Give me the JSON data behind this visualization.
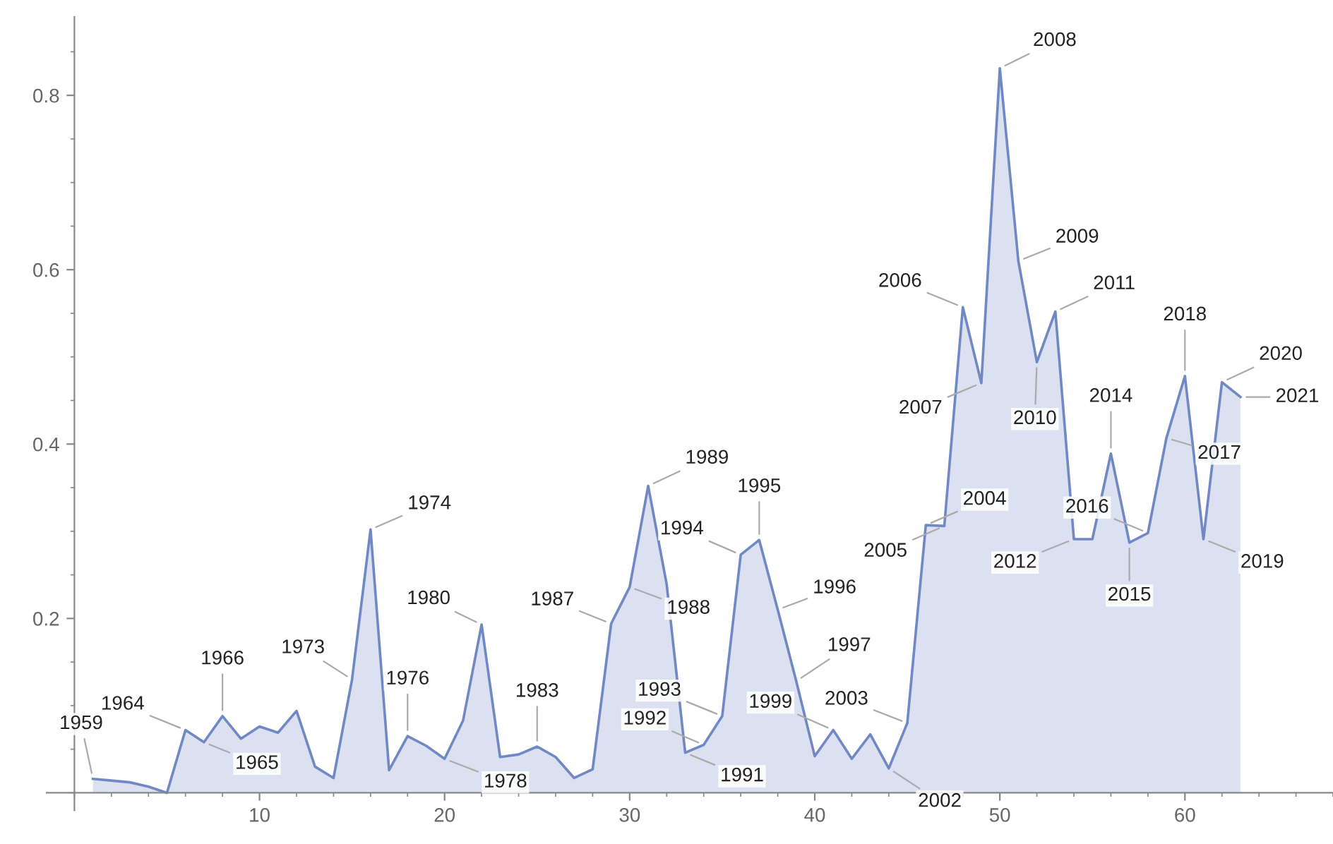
{
  "chart_data": {
    "type": "area",
    "x": [
      1,
      2,
      3,
      4,
      5,
      6,
      7,
      8,
      9,
      10,
      11,
      12,
      13,
      14,
      15,
      16,
      17,
      18,
      19,
      20,
      21,
      22,
      23,
      24,
      25,
      26,
      27,
      28,
      29,
      30,
      31,
      32,
      33,
      34,
      35,
      36,
      37,
      38,
      39,
      40,
      41,
      42,
      43,
      44,
      45,
      46,
      47,
      48,
      49,
      50,
      51,
      52,
      53,
      54,
      55,
      56,
      57,
      58,
      59,
      60,
      61,
      62,
      63
    ],
    "series": [
      {
        "color": "#7088c4",
        "values": [
          0.016,
          0.014,
          0.012,
          0.007,
          0.0,
          0.072,
          0.058,
          0.088,
          0.062,
          0.076,
          0.069,
          0.094,
          0.03,
          0.017,
          0.13,
          0.302,
          0.026,
          0.065,
          0.054,
          0.039,
          0.083,
          0.193,
          0.041,
          0.044,
          0.053,
          0.041,
          0.017,
          0.027,
          0.194,
          0.236,
          0.352,
          0.239,
          0.046,
          0.055,
          0.088,
          0.273,
          0.29,
          0.21,
          0.128,
          0.042,
          0.072,
          0.039,
          0.067,
          0.028,
          0.08,
          0.307,
          0.306,
          0.557,
          0.47,
          0.831,
          0.61,
          0.494,
          0.552,
          0.291,
          0.291,
          0.389,
          0.287,
          0.298,
          0.407,
          0.478,
          0.291,
          0.471,
          0.454
        ]
      }
    ],
    "xlim": [
      -1.5,
      68
    ],
    "ylim": [
      -0.02,
      0.89
    ],
    "xticks": [
      10,
      20,
      30,
      40,
      50,
      60
    ],
    "yticks": [
      0.2,
      0.4,
      0.6,
      0.8
    ],
    "grid": false,
    "legend": false,
    "annotations": [
      {
        "text": "1959",
        "x": 1,
        "y": 0.016
      },
      {
        "text": "1964",
        "x": 6,
        "y": 0.072
      },
      {
        "text": "1965",
        "x": 7,
        "y": 0.058
      },
      {
        "text": "1966",
        "x": 8,
        "y": 0.088
      },
      {
        "text": "1973",
        "x": 15,
        "y": 0.13
      },
      {
        "text": "1974",
        "x": 16,
        "y": 0.302
      },
      {
        "text": "1976",
        "x": 18,
        "y": 0.065
      },
      {
        "text": "1978",
        "x": 20,
        "y": 0.039
      },
      {
        "text": "1980",
        "x": 22,
        "y": 0.193
      },
      {
        "text": "1983",
        "x": 25,
        "y": 0.053
      },
      {
        "text": "1987",
        "x": 29,
        "y": 0.194
      },
      {
        "text": "1988",
        "x": 30,
        "y": 0.236
      },
      {
        "text": "1989",
        "x": 31,
        "y": 0.352
      },
      {
        "text": "1991",
        "x": 33,
        "y": 0.046
      },
      {
        "text": "1992",
        "x": 34,
        "y": 0.055
      },
      {
        "text": "1993",
        "x": 35,
        "y": 0.088
      },
      {
        "text": "1994",
        "x": 36,
        "y": 0.273
      },
      {
        "text": "1995",
        "x": 37,
        "y": 0.29
      },
      {
        "text": "1996",
        "x": 38,
        "y": 0.21
      },
      {
        "text": "1997",
        "x": 39,
        "y": 0.128
      },
      {
        "text": "1999",
        "x": 41,
        "y": 0.072
      },
      {
        "text": "2002",
        "x": 44,
        "y": 0.028
      },
      {
        "text": "2003",
        "x": 45,
        "y": 0.08
      },
      {
        "text": "2004",
        "x": 46,
        "y": 0.307
      },
      {
        "text": "2005",
        "x": 47,
        "y": 0.306
      },
      {
        "text": "2006",
        "x": 48,
        "y": 0.557
      },
      {
        "text": "2007",
        "x": 49,
        "y": 0.47
      },
      {
        "text": "2008",
        "x": 50,
        "y": 0.831
      },
      {
        "text": "2009",
        "x": 51,
        "y": 0.61
      },
      {
        "text": "2010",
        "x": 52,
        "y": 0.494
      },
      {
        "text": "2011",
        "x": 53,
        "y": 0.552
      },
      {
        "text": "2012",
        "x": 54,
        "y": 0.291
      },
      {
        "text": "2014",
        "x": 56,
        "y": 0.389
      },
      {
        "text": "2015",
        "x": 57,
        "y": 0.287
      },
      {
        "text": "2016",
        "x": 58,
        "y": 0.298
      },
      {
        "text": "2017",
        "x": 59,
        "y": 0.407
      },
      {
        "text": "2018",
        "x": 60,
        "y": 0.478
      },
      {
        "text": "2019",
        "x": 61,
        "y": 0.291
      },
      {
        "text": "2020",
        "x": 62,
        "y": 0.471
      },
      {
        "text": "2021",
        "x": 63,
        "y": 0.454
      }
    ]
  }
}
